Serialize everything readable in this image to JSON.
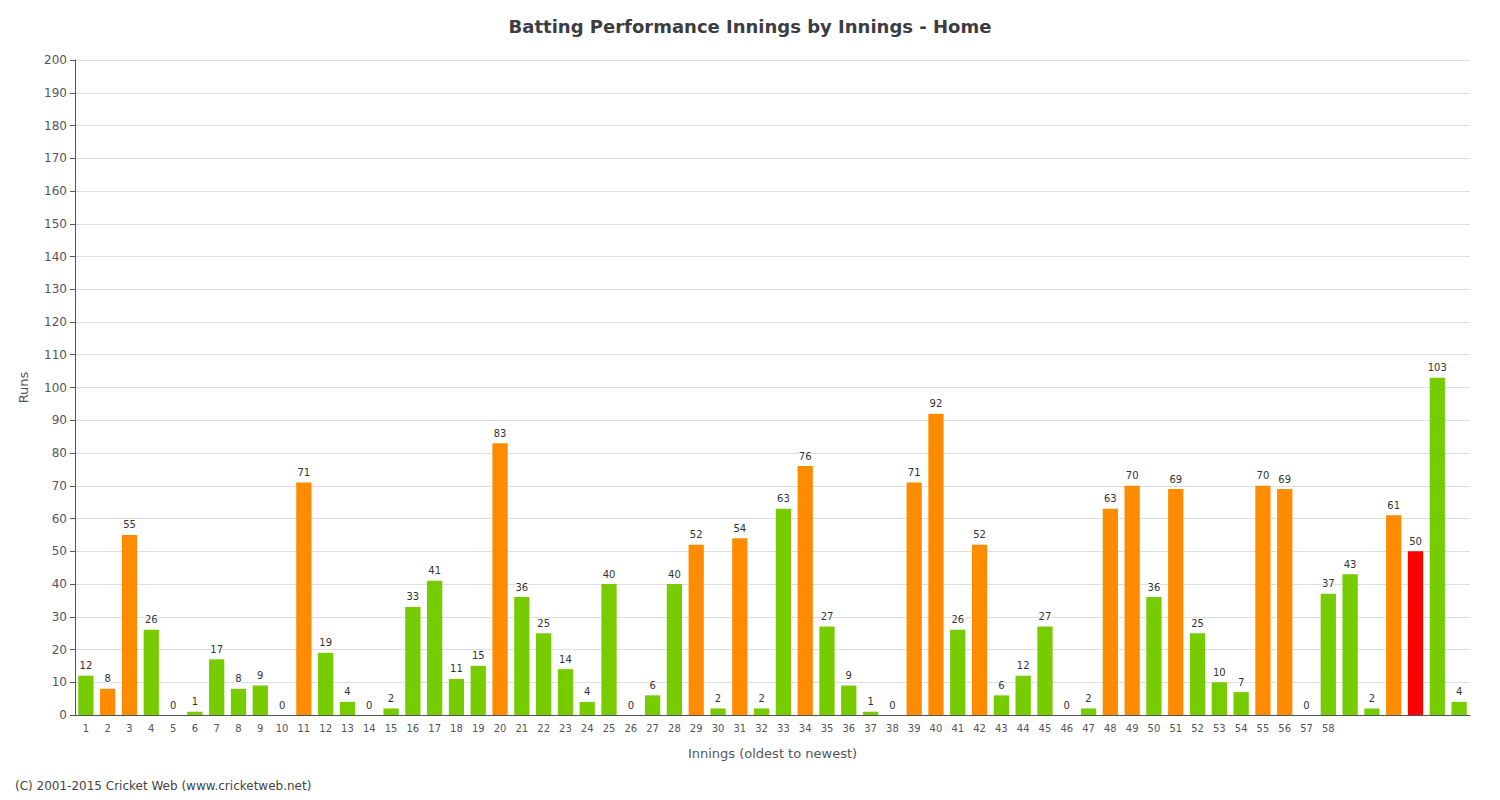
{
  "chart_data": {
    "type": "bar",
    "title": "Batting Performance Innings by Innings - Home",
    "xlabel": "Innings (oldest to newest)",
    "ylabel": "Runs",
    "categories": [
      "1",
      "2",
      "3",
      "4",
      "5",
      "6",
      "7",
      "8",
      "9",
      "10",
      "11",
      "12",
      "13",
      "14",
      "15",
      "16",
      "17",
      "18",
      "19",
      "20",
      "21",
      "22",
      "23",
      "24",
      "25",
      "26",
      "27",
      "28",
      "29",
      "30",
      "31",
      "32",
      "33",
      "34",
      "35",
      "36",
      "37",
      "38",
      "39",
      "40",
      "41",
      "42",
      "43",
      "44",
      "45",
      "46",
      "47",
      "48",
      "49",
      "50",
      "51",
      "52",
      "53",
      "54",
      "55",
      "56",
      "57",
      "58",
      null,
      null,
      null,
      null,
      null,
      null
    ],
    "values": [
      12,
      8,
      55,
      26,
      0,
      1,
      17,
      8,
      9,
      0,
      71,
      19,
      4,
      0,
      2,
      33,
      41,
      11,
      15,
      83,
      36,
      25,
      14,
      4,
      40,
      0,
      6,
      40,
      52,
      2,
      54,
      2,
      63,
      76,
      27,
      9,
      1,
      0,
      71,
      92,
      26,
      52,
      6,
      12,
      27,
      0,
      2,
      63,
      70,
      36,
      69,
      25,
      10,
      7,
      70,
      69,
      0,
      37,
      43,
      2,
      61,
      50,
      103,
      4
    ],
    "colors": [
      "#77cc00",
      "#ff8c00",
      "#ff8c00",
      "#77cc00",
      "#77cc00",
      "#77cc00",
      "#77cc00",
      "#77cc00",
      "#77cc00",
      "#77cc00",
      "#ff8c00",
      "#77cc00",
      "#77cc00",
      "#77cc00",
      "#77cc00",
      "#77cc00",
      "#77cc00",
      "#77cc00",
      "#77cc00",
      "#ff8c00",
      "#77cc00",
      "#77cc00",
      "#77cc00",
      "#77cc00",
      "#77cc00",
      "#77cc00",
      "#77cc00",
      "#77cc00",
      "#ff8c00",
      "#77cc00",
      "#ff8c00",
      "#77cc00",
      "#77cc00",
      "#ff8c00",
      "#77cc00",
      "#77cc00",
      "#77cc00",
      "#77cc00",
      "#ff8c00",
      "#ff8c00",
      "#77cc00",
      "#ff8c00",
      "#77cc00",
      "#77cc00",
      "#77cc00",
      "#77cc00",
      "#77cc00",
      "#ff8c00",
      "#ff8c00",
      "#77cc00",
      "#ff8c00",
      "#77cc00",
      "#77cc00",
      "#77cc00",
      "#ff8c00",
      "#ff8c00",
      "#77cc00",
      "#77cc00",
      "#77cc00",
      "#77cc00",
      "#ff8c00",
      "#ff0000",
      "#77cc00",
      "#77cc00"
    ],
    "ylim": [
      0,
      200
    ],
    "yticks": [
      0,
      10,
      20,
      30,
      40,
      50,
      60,
      70,
      80,
      90,
      100,
      110,
      120,
      130,
      140,
      150,
      160,
      170,
      180,
      190,
      200
    ],
    "grid": true,
    "data_labels": true,
    "annotations": [
      "(C) 2001-2015 Cricket Web (www.cricketweb.net)"
    ]
  }
}
